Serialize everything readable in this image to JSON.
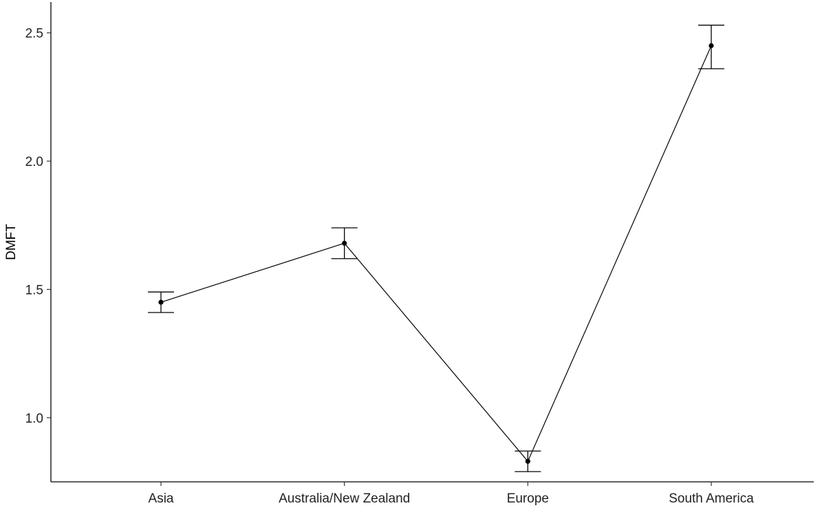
{
  "chart_data": {
    "type": "line",
    "title": "",
    "xlabel": "",
    "ylabel": "DMFT",
    "categories": [
      "Asia",
      "Australia/New Zealand",
      "Europe",
      "South America"
    ],
    "series": [
      {
        "values": [
          1.45,
          1.68,
          0.83,
          2.45
        ],
        "error_lower": [
          1.41,
          1.62,
          0.79,
          2.36
        ],
        "error_upper": [
          1.49,
          1.74,
          0.87,
          2.53
        ]
      }
    ],
    "ylim": [
      0.75,
      2.62
    ],
    "yticks": [
      1.0,
      1.5,
      2.0,
      2.5
    ],
    "ytick_labels": [
      "1.0",
      "1.5",
      "2.0",
      "2.5"
    ],
    "grid": false,
    "legend": "none",
    "colors": {
      "line": "#000000",
      "axis": "#000000"
    }
  }
}
